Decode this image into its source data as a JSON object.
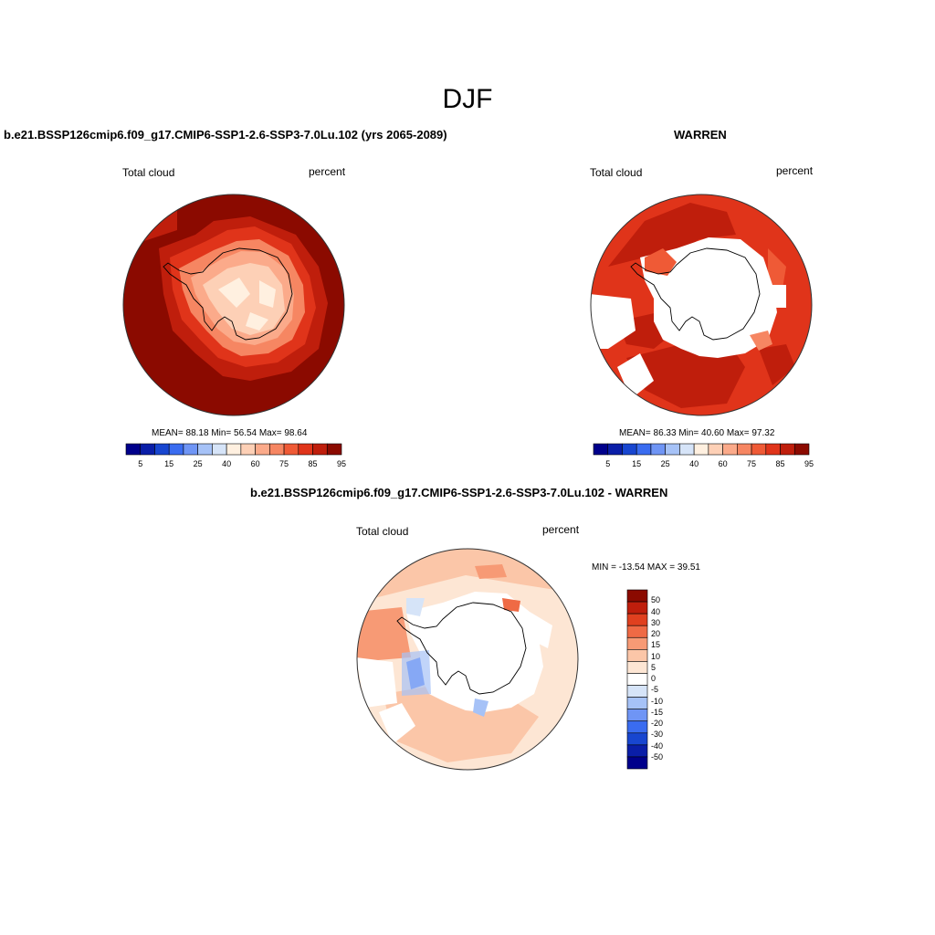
{
  "figure": {
    "title": "DJF"
  },
  "panels": [
    {
      "case_title": "b.e21.BSSP126cmip6.f09_g17.CMIP6-SSP1-2.6-SSP3-7.0Lu.102 (yrs 2065-2089)",
      "left_string": "Total cloud",
      "right_string": "percent",
      "stats": "MEAN=  88.18  Min=  56.54  Max=  98.64"
    },
    {
      "case_title": "WARREN",
      "left_string": "Total cloud",
      "right_string": "percent",
      "stats": "MEAN=  86.33  Min=  40.60  Max=  97.32"
    },
    {
      "case_title": "b.e21.BSSP126cmip6.f09_g17.CMIP6-SSP1-2.6-SSP3-7.0Lu.102 - WARREN",
      "left_string": "Total cloud",
      "right_string": "percent",
      "stats": "MIN = -13.54 MAX =  39.51"
    }
  ],
  "colorbar_abs": {
    "colors": [
      "#00008b",
      "#0a1ea8",
      "#1846d0",
      "#3a6cf0",
      "#6f95f5",
      "#a6c2f7",
      "#d6e4f8",
      "#fff0e0",
      "#fdd0b6",
      "#fbaa8a",
      "#f68662",
      "#ef5a36",
      "#e0341a",
      "#bf1e0c",
      "#8b0a00"
    ],
    "tick_labels": [
      "5",
      "15",
      "25",
      "40",
      "60",
      "75",
      "85",
      "95"
    ]
  },
  "colorbar_diff": {
    "colors": [
      "#00008b",
      "#0a1ea8",
      "#1846d0",
      "#3a6cf0",
      "#6f95f5",
      "#a6c2f7",
      "#d6e4f8",
      "#ffffff",
      "#fde6d4",
      "#fbc6a8",
      "#f79a75",
      "#ef6a45",
      "#e0401f",
      "#bf1e0c",
      "#8b0a00"
    ],
    "tick_labels": [
      "50",
      "40",
      "30",
      "20",
      "15",
      "10",
      "5",
      "0",
      "-5",
      "-10",
      "-15",
      "-20",
      "-30",
      "-40",
      "-50"
    ]
  },
  "map_colors": {
    "dark_red": "#8b0a00",
    "red": "#bf1e0c",
    "orange_red": "#e0341a",
    "orange": "#ef5a36",
    "light_orange": "#f68662",
    "salmon": "#fbaa8a",
    "peach": "#fdd0b6",
    "pale": "#fde6d4",
    "cream": "#fff0e0",
    "light_blue": "#a6c2f7",
    "blue": "#3a6cf0"
  }
}
